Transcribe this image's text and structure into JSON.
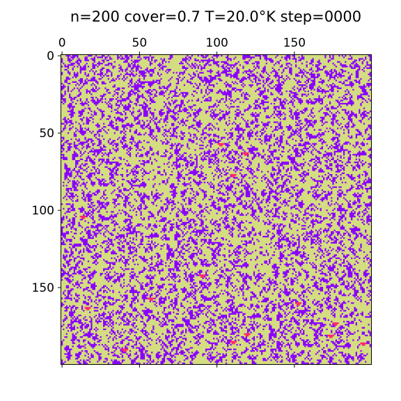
{
  "chart_data": {
    "type": "heatmap",
    "title": "n=200 cover=0.7 T=20.0°K step=0000",
    "xlabel": "",
    "ylabel": "",
    "grid_size": 200,
    "xlim": [
      0,
      200
    ],
    "ylim": [
      200,
      0
    ],
    "x_ticks": [
      0,
      50,
      100,
      150
    ],
    "y_ticks": [
      0,
      50,
      100,
      150
    ],
    "x_tick_position": "top",
    "grid": false,
    "legend": "none",
    "colors": {
      "background": "#d4dd80",
      "cluster": "#8a00ff",
      "hot": "#ff2a6a"
    },
    "hot_spots": [
      {
        "x": 102,
        "y": 57
      },
      {
        "x": 118,
        "y": 63
      },
      {
        "x": 110,
        "y": 77
      },
      {
        "x": 13,
        "y": 104
      },
      {
        "x": 90,
        "y": 142
      },
      {
        "x": 57,
        "y": 157
      },
      {
        "x": 16,
        "y": 163
      },
      {
        "x": 152,
        "y": 160
      },
      {
        "x": 119,
        "y": 180
      },
      {
        "x": 176,
        "y": 173
      },
      {
        "x": 194,
        "y": 186
      },
      {
        "x": 173,
        "y": 181
      },
      {
        "x": 40,
        "y": 190
      },
      {
        "x": 110,
        "y": 185
      }
    ]
  }
}
